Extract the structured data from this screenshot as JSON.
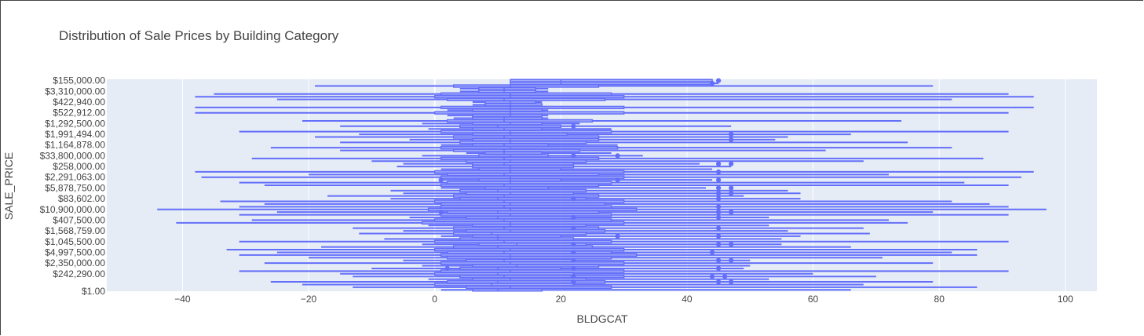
{
  "chart_data": {
    "type": "box",
    "title": "Distribution of Sale Prices by Building Category",
    "xlabel": "BLDGCAT",
    "ylabel": "SALE_PRICE",
    "orientation": "horizontal",
    "series_color": "#636efa",
    "plot_background": "#e5ecf6",
    "grid": true,
    "x_axis": {
      "range": [
        -52,
        105
      ],
      "ticks": [
        -40,
        -20,
        0,
        20,
        40,
        60,
        80,
        100
      ],
      "tick_labels": [
        "−40",
        "−20",
        "0",
        "20",
        "40",
        "60",
        "80",
        "100"
      ]
    },
    "y_axis": {
      "type": "category",
      "category_count": 79,
      "visible_tick_labels": [
        "$155,000.00",
        "$3,310,000.00",
        "$422,940.00",
        "$522,912.00",
        "$1,292,500.00",
        "$1,991,494.00",
        "$1,164,878.00",
        "$33,800,000.00",
        "$258,000.00",
        "$2,291,063.00",
        "$5,878,750.00",
        "$83,602.00",
        "$10,900,000.00",
        "$407,500.00",
        "$1,568,759.00",
        "$1,045,500.00",
        "$4,997,500.00",
        "$2,350,000.00",
        "$242,290.00",
        "$1.00"
      ]
    },
    "boxes": [
      {
        "cat_index": 0,
        "lower_fence": 1,
        "q1": 6,
        "median": 10,
        "q3": 17,
        "upper_fence": 66
      },
      {
        "cat_index": 1,
        "lower_fence": -13,
        "q1": 5,
        "median": 12,
        "q3": 28,
        "upper_fence": 86
      },
      {
        "cat_index": 2,
        "lower_fence": -21,
        "q1": 0,
        "median": 9,
        "q3": 22,
        "upper_fence": 68
      },
      {
        "cat_index": 3,
        "lower_fence": -26,
        "q1": 2,
        "median": 10,
        "q3": 27,
        "upper_fence": 79
      },
      {
        "cat_index": 4,
        "lower_fence": -1,
        "q1": 6,
        "median": 12,
        "q3": 24,
        "upper_fence": 53
      },
      {
        "cat_index": 5,
        "lower_fence": -13,
        "q1": 4,
        "median": 11,
        "q3": 30,
        "upper_fence": 70
      },
      {
        "cat_index": 6,
        "lower_fence": -15,
        "q1": 0,
        "median": 10,
        "q3": 22,
        "upper_fence": 60
      },
      {
        "cat_index": 7,
        "lower_fence": -31,
        "q1": 1,
        "median": 12,
        "q3": 30,
        "upper_fence": 91
      },
      {
        "cat_index": 8,
        "lower_fence": -10,
        "q1": 4,
        "median": 10,
        "q3": 20,
        "upper_fence": 49
      },
      {
        "cat_index": 9,
        "lower_fence": -2,
        "q1": 6,
        "median": 13,
        "q3": 26,
        "upper_fence": 50
      },
      {
        "cat_index": 10,
        "lower_fence": -27,
        "q1": 1,
        "median": 12,
        "q3": 30,
        "upper_fence": 79
      },
      {
        "cat_index": 11,
        "lower_fence": -5,
        "q1": 5,
        "median": 11,
        "q3": 22,
        "upper_fence": 50
      },
      {
        "cat_index": 12,
        "lower_fence": -20,
        "q1": 2,
        "median": 12,
        "q3": 28,
        "upper_fence": 71
      },
      {
        "cat_index": 13,
        "lower_fence": -31,
        "q1": 1,
        "median": 12,
        "q3": 32,
        "upper_fence": 86
      },
      {
        "cat_index": 14,
        "lower_fence": -25,
        "q1": 2,
        "median": 11,
        "q3": 28,
        "upper_fence": 82
      },
      {
        "cat_index": 15,
        "lower_fence": -33,
        "q1": 0,
        "median": 12,
        "q3": 30,
        "upper_fence": 86
      },
      {
        "cat_index": 16,
        "lower_fence": -18,
        "q1": 3,
        "median": 10,
        "q3": 25,
        "upper_fence": 66
      },
      {
        "cat_index": 17,
        "lower_fence": -2,
        "q1": 7,
        "median": 13,
        "q3": 24,
        "upper_fence": 55
      },
      {
        "cat_index": 18,
        "lower_fence": -31,
        "q1": 0,
        "median": 11,
        "q3": 28,
        "upper_fence": 91
      },
      {
        "cat_index": 19,
        "lower_fence": -8,
        "q1": 4,
        "median": 10,
        "q3": 22,
        "upper_fence": 55
      },
      {
        "cat_index": 20,
        "lower_fence": 1,
        "q1": 6,
        "median": 10,
        "q3": 20,
        "upper_fence": 58
      },
      {
        "cat_index": 21,
        "lower_fence": -12,
        "q1": 3,
        "median": 9,
        "q3": 24,
        "upper_fence": 69
      },
      {
        "cat_index": 22,
        "lower_fence": -5,
        "q1": 5,
        "median": 12,
        "q3": 27,
        "upper_fence": 56
      },
      {
        "cat_index": 23,
        "lower_fence": -13,
        "q1": 3,
        "median": 11,
        "q3": 26,
        "upper_fence": 68
      },
      {
        "cat_index": 24,
        "lower_fence": -1,
        "q1": 6,
        "median": 12,
        "q3": 24,
        "upper_fence": 53
      },
      {
        "cat_index": 25,
        "lower_fence": -41,
        "q1": -2,
        "median": 12,
        "q3": 30,
        "upper_fence": 75
      },
      {
        "cat_index": 26,
        "lower_fence": -29,
        "q1": 0,
        "median": 11,
        "q3": 28,
        "upper_fence": 72
      },
      {
        "cat_index": 27,
        "lower_fence": -4,
        "q1": 5,
        "median": 10,
        "q3": 22,
        "upper_fence": 53
      },
      {
        "cat_index": 28,
        "lower_fence": -31,
        "q1": 1,
        "median": 12,
        "q3": 28,
        "upper_fence": 91
      },
      {
        "cat_index": 29,
        "lower_fence": -25,
        "q1": 2,
        "median": 10,
        "q3": 26,
        "upper_fence": 79
      },
      {
        "cat_index": 30,
        "lower_fence": -44,
        "q1": -1,
        "median": 12,
        "q3": 32,
        "upper_fence": 97
      },
      {
        "cat_index": 31,
        "lower_fence": -31,
        "q1": 1,
        "median": 11,
        "q3": 28,
        "upper_fence": 91
      },
      {
        "cat_index": 32,
        "lower_fence": -27,
        "q1": 1,
        "median": 12,
        "q3": 27,
        "upper_fence": 88
      },
      {
        "cat_index": 33,
        "lower_fence": -34,
        "q1": 0,
        "median": 11,
        "q3": 30,
        "upper_fence": 82
      },
      {
        "cat_index": 34,
        "lower_fence": -7,
        "q1": 4,
        "median": 10,
        "q3": 24,
        "upper_fence": 58
      },
      {
        "cat_index": 35,
        "lower_fence": -17,
        "q1": 3,
        "median": 11,
        "q3": 26,
        "upper_fence": 49
      },
      {
        "cat_index": 36,
        "lower_fence": -5,
        "q1": 5,
        "median": 12,
        "q3": 22,
        "upper_fence": 58
      },
      {
        "cat_index": 37,
        "lower_fence": -7,
        "q1": 4,
        "median": 10,
        "q3": 24,
        "upper_fence": 56
      },
      {
        "cat_index": 38,
        "lower_fence": 1,
        "q1": 8,
        "median": 12,
        "q3": 18,
        "upper_fence": 43
      },
      {
        "cat_index": 39,
        "lower_fence": -27,
        "q1": 1,
        "median": 11,
        "q3": 26,
        "upper_fence": 91
      },
      {
        "cat_index": 40,
        "lower_fence": -31,
        "q1": 2,
        "median": 12,
        "q3": 28,
        "upper_fence": 84
      },
      {
        "cat_index": 41,
        "lower_fence": 1,
        "q1": 7,
        "median": 12,
        "q3": 20,
        "upper_fence": 44
      },
      {
        "cat_index": 42,
        "lower_fence": -37,
        "q1": 1,
        "median": 12,
        "q3": 30,
        "upper_fence": 93
      },
      {
        "cat_index": 43,
        "lower_fence": -20,
        "q1": 2,
        "median": 11,
        "q3": 26,
        "upper_fence": 72
      },
      {
        "cat_index": 44,
        "lower_fence": -38,
        "q1": 0,
        "median": 12,
        "q3": 30,
        "upper_fence": 95
      },
      {
        "cat_index": 45,
        "lower_fence": 1,
        "q1": 7,
        "median": 12,
        "q3": 20,
        "upper_fence": 44
      },
      {
        "cat_index": 46,
        "lower_fence": -6,
        "q1": 6,
        "median": 12,
        "q3": 22,
        "upper_fence": 47
      },
      {
        "cat_index": 47,
        "lower_fence": -5,
        "q1": 6,
        "median": 11,
        "q3": 22,
        "upper_fence": 42
      },
      {
        "cat_index": 48,
        "lower_fence": -10,
        "q1": 5,
        "median": 12,
        "q3": 24,
        "upper_fence": 68
      },
      {
        "cat_index": 49,
        "lower_fence": -29,
        "q1": 1,
        "median": 11,
        "q3": 26,
        "upper_fence": 87
      },
      {
        "cat_index": 50,
        "lower_fence": -2,
        "q1": 7,
        "median": 12,
        "q3": 18,
        "upper_fence": 33
      },
      {
        "cat_index": 51,
        "lower_fence": 5,
        "q1": 8,
        "median": 11,
        "q3": 17,
        "upper_fence": 28
      },
      {
        "cat_index": 52,
        "lower_fence": -15,
        "q1": 3,
        "median": 11,
        "q3": 23,
        "upper_fence": 62
      },
      {
        "cat_index": 53,
        "lower_fence": -26,
        "q1": 1,
        "median": 12,
        "q3": 29,
        "upper_fence": 82
      },
      {
        "cat_index": 54,
        "lower_fence": 1,
        "q1": 6,
        "median": 11,
        "q3": 18,
        "upper_fence": 29
      },
      {
        "cat_index": 55,
        "lower_fence": -15,
        "q1": 4,
        "median": 12,
        "q3": 24,
        "upper_fence": 75
      },
      {
        "cat_index": 56,
        "lower_fence": -4,
        "q1": 6,
        "median": 12,
        "q3": 26,
        "upper_fence": 54
      },
      {
        "cat_index": 57,
        "lower_fence": -19,
        "q1": 3,
        "median": 11,
        "q3": 26,
        "upper_fence": 56
      },
      {
        "cat_index": 58,
        "lower_fence": -12,
        "q1": 6,
        "median": 12,
        "q3": 21,
        "upper_fence": 66
      },
      {
        "cat_index": 59,
        "lower_fence": -31,
        "q1": 1,
        "median": 12,
        "q3": 28,
        "upper_fence": 91
      },
      {
        "cat_index": 60,
        "lower_fence": -1,
        "q1": 6,
        "median": 11,
        "q3": 17,
        "upper_fence": 28
      },
      {
        "cat_index": 61,
        "lower_fence": -15,
        "q1": 4,
        "median": 10,
        "q3": 20,
        "upper_fence": 47
      },
      {
        "cat_index": 62,
        "lower_fence": -2,
        "q1": 6,
        "median": 12,
        "q3": 17,
        "upper_fence": 23
      },
      {
        "cat_index": 63,
        "lower_fence": -21,
        "q1": 2,
        "median": 11,
        "q3": 25,
        "upper_fence": 74
      },
      {
        "cat_index": 64,
        "lower_fence": 3,
        "q1": 6,
        "median": 11,
        "q3": 17,
        "upper_fence": 18
      },
      {
        "cat_index": 65,
        "lower_fence": 2,
        "q1": 6,
        "median": 12,
        "q3": 17,
        "upper_fence": 18
      },
      {
        "cat_index": 66,
        "lower_fence": -38,
        "q1": 0,
        "median": 12,
        "q3": 30,
        "upper_fence": 91
      },
      {
        "cat_index": 67,
        "lower_fence": 2,
        "q1": 6,
        "median": 12,
        "q3": 17,
        "upper_fence": 18
      },
      {
        "cat_index": 68,
        "lower_fence": -38,
        "q1": 1,
        "median": 12,
        "q3": 30,
        "upper_fence": 95
      },
      {
        "cat_index": 69,
        "lower_fence": 6,
        "q1": 8,
        "median": 12,
        "q3": 17,
        "upper_fence": 17
      },
      {
        "cat_index": 70,
        "lower_fence": 6,
        "q1": 8,
        "median": 12,
        "q3": 16,
        "upper_fence": 17
      },
      {
        "cat_index": 71,
        "lower_fence": -25,
        "q1": 2,
        "median": 11,
        "q3": 27,
        "upper_fence": 82
      },
      {
        "cat_index": 72,
        "lower_fence": -38,
        "q1": 0,
        "median": 12,
        "q3": 30,
        "upper_fence": 95
      },
      {
        "cat_index": 73,
        "lower_fence": -35,
        "q1": 1,
        "median": 12,
        "q3": 28,
        "upper_fence": 91
      },
      {
        "cat_index": 74,
        "lower_fence": 4,
        "q1": 7,
        "median": 11,
        "q3": 16,
        "upper_fence": 18
      },
      {
        "cat_index": 75,
        "lower_fence": 4,
        "q1": 7,
        "median": 11,
        "q3": 16,
        "upper_fence": 18
      },
      {
        "cat_index": 76,
        "lower_fence": -19,
        "q1": 3,
        "median": 12,
        "q3": 26,
        "upper_fence": 79
      },
      {
        "cat_index": 77,
        "lower_fence": 12,
        "q1": 12,
        "median": 20,
        "q3": 44,
        "upper_fence": 45
      },
      {
        "cat_index": 78,
        "lower_fence": 12,
        "q1": 12,
        "median": 20,
        "q3": 44,
        "upper_fence": 44
      }
    ],
    "outliers": [
      {
        "cat_index": 3,
        "x": 22
      },
      {
        "cat_index": 3,
        "x": 45
      },
      {
        "cat_index": 3,
        "x": 47
      },
      {
        "cat_index": 5,
        "x": 22
      },
      {
        "cat_index": 5,
        "x": 44
      },
      {
        "cat_index": 5,
        "x": 46
      },
      {
        "cat_index": 8,
        "x": 2
      },
      {
        "cat_index": 8,
        "x": 22
      },
      {
        "cat_index": 8,
        "x": 45
      },
      {
        "cat_index": 11,
        "x": 22
      },
      {
        "cat_index": 11,
        "x": 45
      },
      {
        "cat_index": 11,
        "x": 47
      },
      {
        "cat_index": 14,
        "x": 22
      },
      {
        "cat_index": 14,
        "x": 44
      },
      {
        "cat_index": 17,
        "x": 22
      },
      {
        "cat_index": 17,
        "x": 45
      },
      {
        "cat_index": 17,
        "x": 47
      },
      {
        "cat_index": 20,
        "x": 29
      },
      {
        "cat_index": 20,
        "x": 45
      },
      {
        "cat_index": 23,
        "x": 22
      },
      {
        "cat_index": 23,
        "x": 45
      },
      {
        "cat_index": 27,
        "x": 22
      },
      {
        "cat_index": 27,
        "x": 45
      },
      {
        "cat_index": 29,
        "x": 1
      },
      {
        "cat_index": 29,
        "x": 45
      },
      {
        "cat_index": 29,
        "x": 47
      },
      {
        "cat_index": 31,
        "x": 45
      },
      {
        "cat_index": 34,
        "x": 22
      },
      {
        "cat_index": 34,
        "x": 45
      },
      {
        "cat_index": 36,
        "x": 45
      },
      {
        "cat_index": 36,
        "x": 47
      },
      {
        "cat_index": 38,
        "x": 45
      },
      {
        "cat_index": 38,
        "x": 47
      },
      {
        "cat_index": 41,
        "x": 1
      },
      {
        "cat_index": 41,
        "x": 29
      },
      {
        "cat_index": 41,
        "x": 45
      },
      {
        "cat_index": 44,
        "x": 45
      },
      {
        "cat_index": 47,
        "x": 45
      },
      {
        "cat_index": 47,
        "x": 47
      },
      {
        "cat_index": 50,
        "x": 22
      },
      {
        "cat_index": 50,
        "x": 29
      },
      {
        "cat_index": 56,
        "x": 47
      },
      {
        "cat_index": 58,
        "x": 47
      },
      {
        "cat_index": 61,
        "x": 22
      },
      {
        "cat_index": 77,
        "x": 44
      },
      {
        "cat_index": 78,
        "x": 45
      }
    ]
  }
}
